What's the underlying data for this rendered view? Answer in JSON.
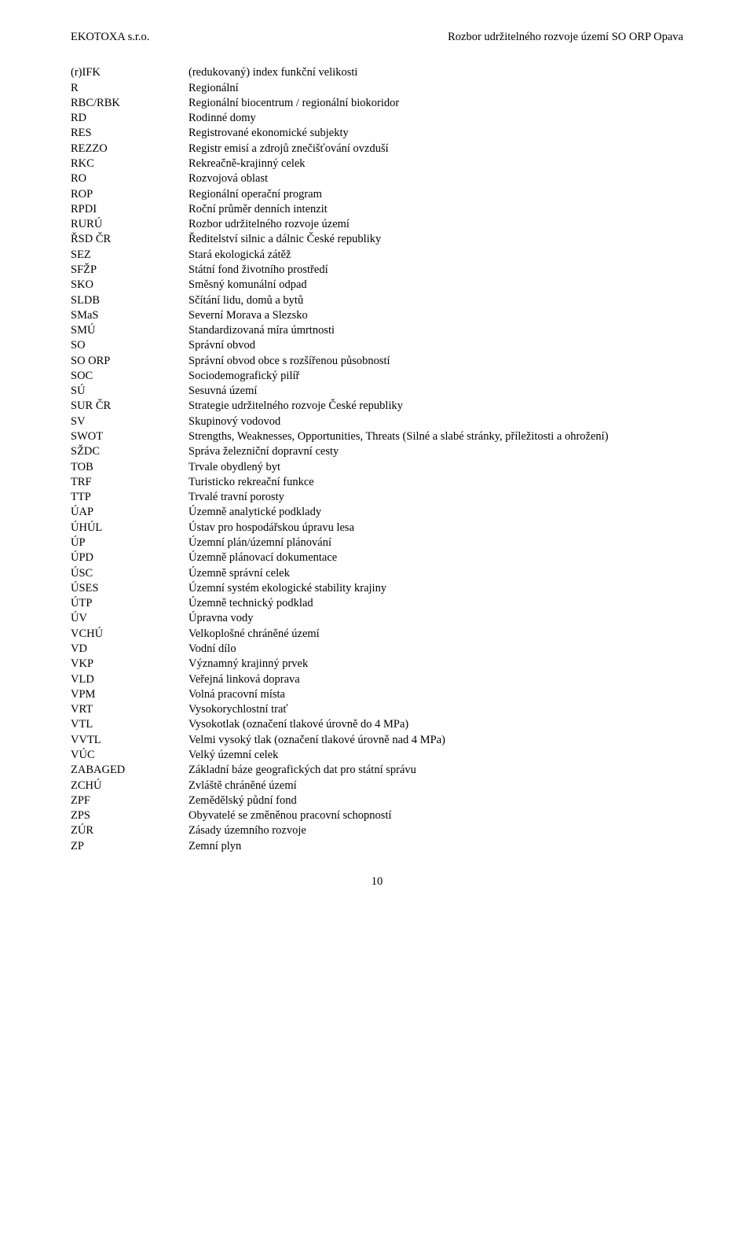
{
  "header": {
    "left": "EKOTOXA s.r.o.",
    "right": "Rozbor udržitelného rozvoje území SO ORP Opava"
  },
  "rows": [
    {
      "abbr": "(r)IFK",
      "def": "(redukovaný) index funkční velikosti"
    },
    {
      "abbr": "R",
      "def": "Regionální"
    },
    {
      "abbr": "RBC/RBK",
      "def": "Regionální biocentrum / regionální biokoridor"
    },
    {
      "abbr": "RD",
      "def": "Rodinné domy"
    },
    {
      "abbr": "RES",
      "def": "Registrované ekonomické subjekty"
    },
    {
      "abbr": "REZZO",
      "def": "Registr emisí a zdrojů znečišťování ovzduší"
    },
    {
      "abbr": "RKC",
      "def": "Rekreačně-krajinný celek"
    },
    {
      "abbr": "RO",
      "def": "Rozvojová oblast"
    },
    {
      "abbr": "ROP",
      "def": "Regionální operační program"
    },
    {
      "abbr": "RPDI",
      "def": "Roční průměr denních intenzit"
    },
    {
      "abbr": "RURÚ",
      "def": "Rozbor udržitelného rozvoje území"
    },
    {
      "abbr": "ŘSD ČR",
      "def": "Ředitelství silnic a dálnic České republiky"
    },
    {
      "abbr": "SEZ",
      "def": "Stará ekologická zátěž"
    },
    {
      "abbr": "SFŽP",
      "def": "Státní fond životního prostředí"
    },
    {
      "abbr": "SKO",
      "def": "Směsný komunální odpad"
    },
    {
      "abbr": "SLDB",
      "def": "Sčítání lidu, domů a bytů"
    },
    {
      "abbr": "SMaS",
      "def": "Severní Morava a Slezsko"
    },
    {
      "abbr": "SMÚ",
      "def": "Standardizovaná míra úmrtnosti"
    },
    {
      "abbr": "SO",
      "def": "Správní obvod"
    },
    {
      "abbr": "SO ORP",
      "def": "Správní obvod obce s rozšířenou působností"
    },
    {
      "abbr": "SOC",
      "def": "Sociodemografický pilíř"
    },
    {
      "abbr": "SÚ",
      "def": "Sesuvná území"
    },
    {
      "abbr": "SUR ČR",
      "def": "Strategie udržitelného rozvoje České republiky"
    },
    {
      "abbr": "SV",
      "def": "Skupinový vodovod"
    },
    {
      "abbr": "SWOT",
      "def": "Strengths, Weaknesses, Opportunities, Threats (Silné a slabé stránky, příležitosti a ohrožení)"
    },
    {
      "abbr": "SŽDC",
      "def": "Správa železniční dopravní cesty"
    },
    {
      "abbr": "TOB",
      "def": "Trvale obydlený byt"
    },
    {
      "abbr": "TRF",
      "def": "Turisticko rekreační funkce"
    },
    {
      "abbr": "TTP",
      "def": "Trvalé travní porosty"
    },
    {
      "abbr": "ÚAP",
      "def": "Územně analytické podklady"
    },
    {
      "abbr": "ÚHÚL",
      "def": "Ústav pro hospodářskou úpravu lesa"
    },
    {
      "abbr": "ÚP",
      "def": "Územní plán/územní plánování"
    },
    {
      "abbr": "ÚPD",
      "def": "Územně plánovací dokumentace"
    },
    {
      "abbr": "ÚSC",
      "def": "Územně správní celek"
    },
    {
      "abbr": "ÚSES",
      "def": "Územní systém ekologické stability krajiny"
    },
    {
      "abbr": "ÚTP",
      "def": "Územně technický podklad"
    },
    {
      "abbr": "ÚV",
      "def": "Úpravna vody"
    },
    {
      "abbr": "VCHÚ",
      "def": "Velkoplošné chráněné území"
    },
    {
      "abbr": "VD",
      "def": "Vodní dílo"
    },
    {
      "abbr": "VKP",
      "def": "Významný krajinný prvek"
    },
    {
      "abbr": "VLD",
      "def": "Veřejná linková doprava"
    },
    {
      "abbr": "VPM",
      "def": "Volná pracovní místa"
    },
    {
      "abbr": "VRT",
      "def": "Vysokorychlostní trať"
    },
    {
      "abbr": "VTL",
      "def": "Vysokotlak (označení tlakové úrovně do 4 MPa)"
    },
    {
      "abbr": "VVTL",
      "def": "Velmi vysoký tlak (označení tlakové úrovně nad 4 MPa)"
    },
    {
      "abbr": "VÚC",
      "def": "Velký územní celek"
    },
    {
      "abbr": "ZABAGED",
      "def": "Základní báze geografických dat pro státní správu"
    },
    {
      "abbr": "ZCHÚ",
      "def": "Zvláště chráněné území"
    },
    {
      "abbr": "ZPF",
      "def": "Zemědělský půdní fond"
    },
    {
      "abbr": "ZPS",
      "def": "Obyvatelé se změněnou pracovní schopností"
    },
    {
      "abbr": "ZÚR",
      "def": "Zásady územního rozvoje"
    },
    {
      "abbr": "ZP",
      "def": "Zemní plyn"
    }
  ],
  "footer": {
    "page": "10"
  }
}
